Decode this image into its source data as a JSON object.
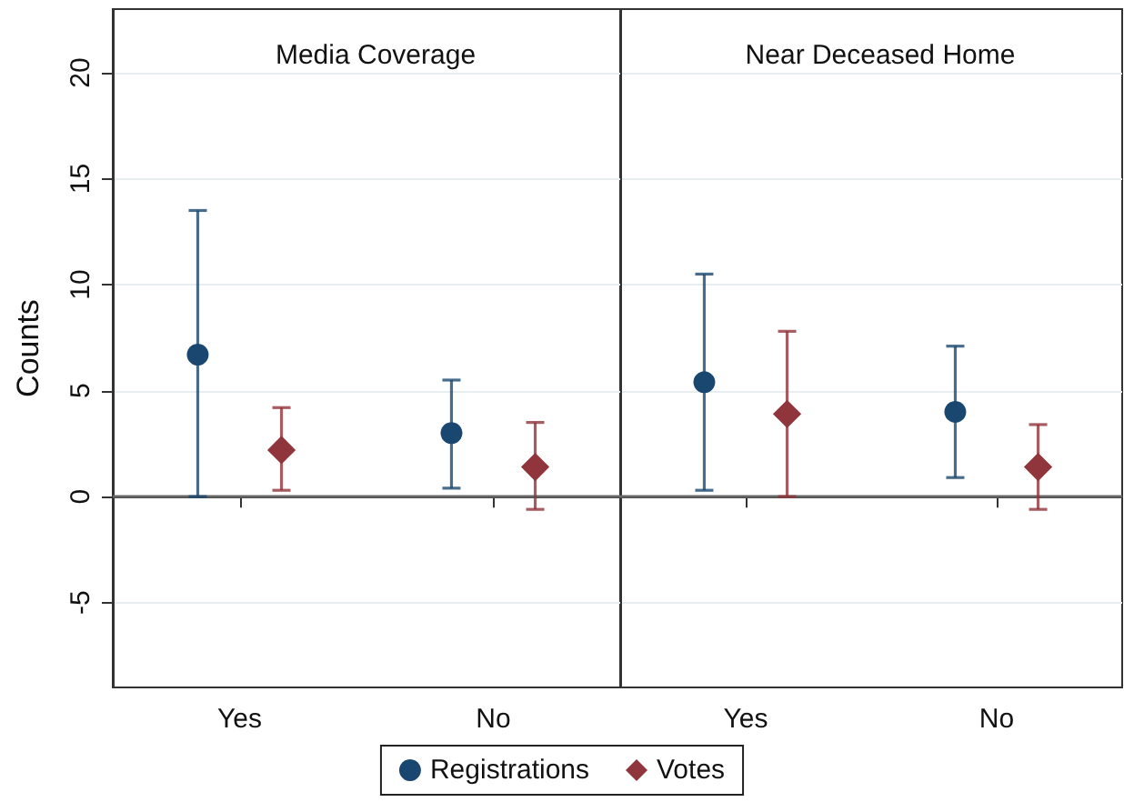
{
  "chart_data": [
    {
      "type": "scatter",
      "title": "Media Coverage",
      "ylabel": "Counts",
      "categories": [
        "Yes",
        "No"
      ],
      "ylim": [
        -9,
        23
      ],
      "yticks": [
        -5,
        0,
        5,
        10,
        15,
        20
      ],
      "grid": "y",
      "legend": "bottom",
      "ref_lines": [
        {
          "axis": "y",
          "value": 0
        }
      ],
      "series": [
        {
          "name": "Registrations",
          "color": "#1a476f",
          "marker": "circle",
          "values": [
            6.7,
            3.0
          ],
          "errors": [
            [
              0,
              13.5
            ],
            [
              0.4,
              5.5
            ]
          ]
        },
        {
          "name": "Votes",
          "color": "#90353b",
          "marker": "diamond",
          "values": [
            2.2,
            1.4
          ],
          "errors": [
            [
              0.3,
              4.2
            ],
            [
              -0.6,
              3.5
            ]
          ]
        }
      ]
    },
    {
      "type": "scatter",
      "title": "Near Deceased Home",
      "categories": [
        "Yes",
        "No"
      ],
      "ylim": [
        -9,
        23
      ],
      "yticks": [
        -5,
        0,
        5,
        10,
        15,
        20
      ],
      "grid": "y",
      "tick_labels": "x",
      "ref_lines": [
        {
          "axis": "y",
          "value": 0
        }
      ],
      "series": [
        {
          "color": "#1a476f",
          "marker": "circle",
          "values": [
            5.4,
            4.0
          ],
          "errors": [
            [
              0.3,
              10.5
            ],
            [
              0.9,
              7.1
            ]
          ]
        },
        {
          "color": "#90353b",
          "marker": "diamond",
          "values": [
            3.9,
            1.4
          ],
          "errors": [
            [
              0,
              7.8
            ],
            [
              -0.6,
              3.4
            ]
          ]
        }
      ]
    }
  ]
}
